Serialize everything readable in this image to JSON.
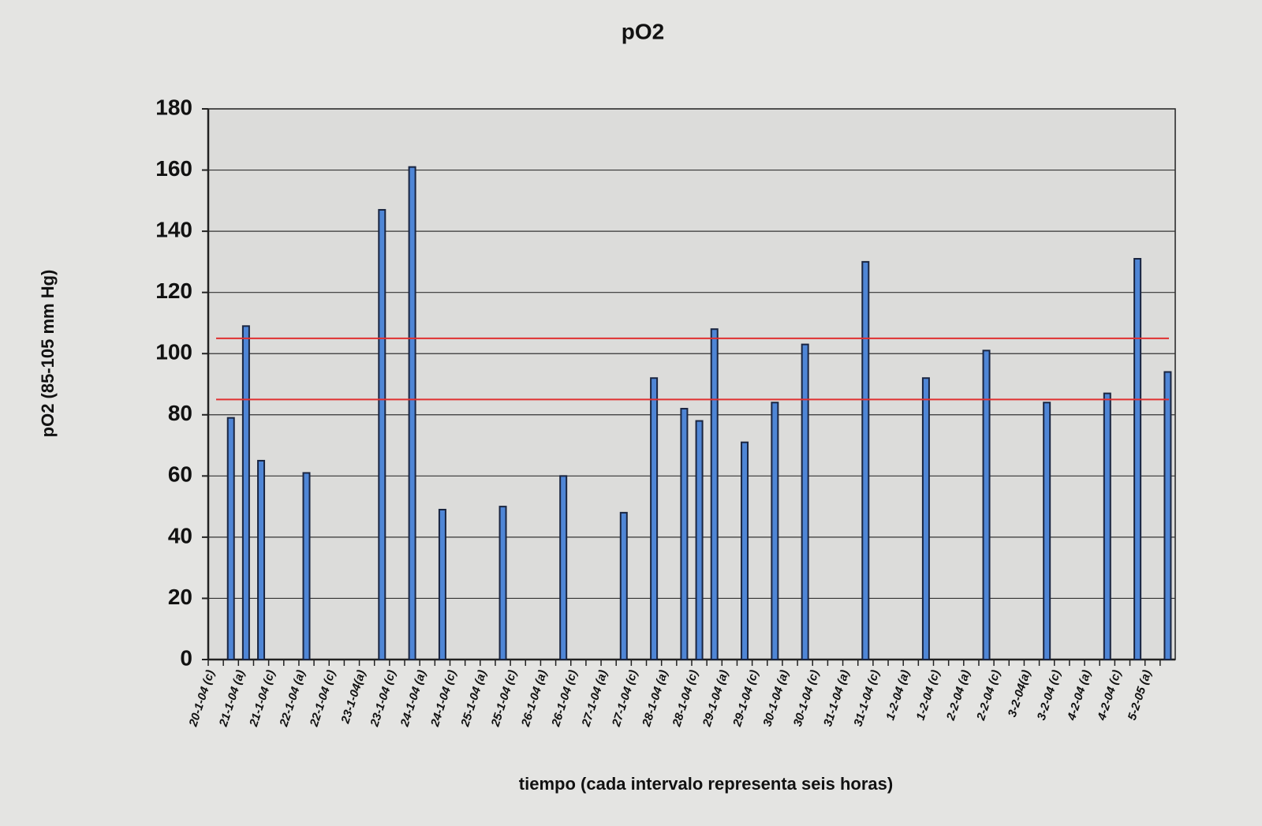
{
  "chart_data": {
    "type": "bar",
    "title": "pO2",
    "ylabel": "pO2 (85-105 mm Hg)",
    "xlabel": "tiempo (cada intervalo representa seis horas)",
    "categories": [
      "20-1-04 (c)",
      null,
      "21-1-04 (a)",
      null,
      "21-1-04 (c)",
      null,
      "22-1-04 (a)",
      null,
      "22-1-04 (c)",
      null,
      "23-1-04(a)",
      null,
      "23-1-04 (c)",
      null,
      "24-1-04 (a)",
      null,
      "24-1-04 (c)",
      null,
      "25-1-04 (a)",
      null,
      "25-1-04 (c)",
      null,
      "26-1-04 (a)",
      null,
      "26-1-04 (c)",
      null,
      "27-1-04 (a)",
      null,
      "27-1-04 (c)",
      null,
      "28-1-04 (a)",
      null,
      "28-1-04 (c)",
      null,
      "29-1-04 (a)",
      null,
      "29-1-04 (c)",
      null,
      "30-1-04 (a)",
      null,
      "30-1-04 (c)",
      null,
      "31-1-04 (a)",
      null,
      "31-1-04 (c)",
      null,
      "1-2-04 (a)",
      null,
      "1-2-04 (c)",
      null,
      "2-2-04 (a)",
      null,
      "2-2-04 (c)",
      null,
      "3-2-04(a)",
      null,
      "3-2-04 (c)",
      null,
      "4-2-04 (a)",
      null,
      "4-2-04 (c)",
      null,
      "5-2-05 (a)",
      null
    ],
    "values": [
      null,
      79,
      109,
      65,
      null,
      null,
      61,
      null,
      null,
      null,
      null,
      147,
      null,
      161,
      null,
      49,
      null,
      null,
      null,
      50,
      null,
      null,
      null,
      60,
      null,
      null,
      null,
      48,
      null,
      92,
      null,
      82,
      78,
      108,
      null,
      71,
      null,
      84,
      null,
      103,
      null,
      null,
      null,
      130,
      null,
      null,
      null,
      92,
      null,
      null,
      null,
      101,
      null,
      null,
      null,
      84,
      null,
      null,
      null,
      87,
      null,
      131,
      null,
      94
    ],
    "color": "#4f86d6",
    "ylim": [
      0,
      180
    ],
    "yticks": [
      0,
      20,
      40,
      60,
      80,
      100,
      120,
      140,
      160,
      180
    ],
    "grid": true,
    "reference_lines": [
      85,
      105
    ],
    "reference_color": "#e03030"
  }
}
